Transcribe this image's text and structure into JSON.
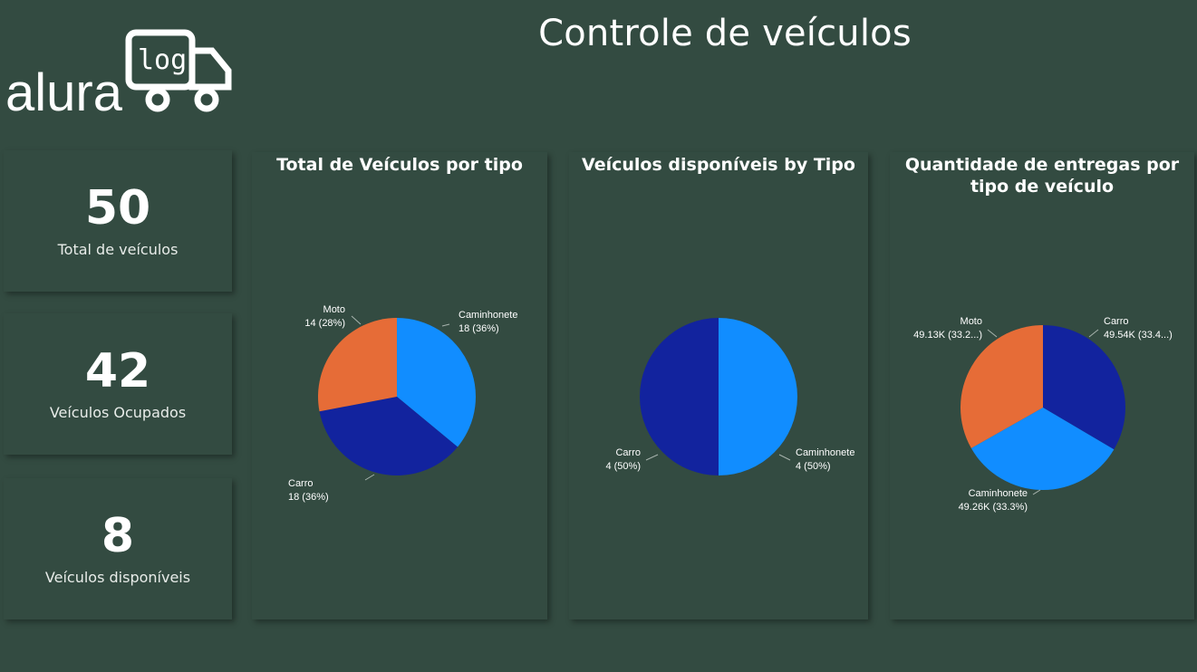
{
  "page": {
    "title": "Controle de veículos",
    "logo": {
      "text": "alura",
      "badge": "log"
    }
  },
  "kpis": [
    {
      "value": "50",
      "label": "Total de veículos"
    },
    {
      "value": "42",
      "label": "Veículos Ocupados"
    },
    {
      "value": "8",
      "label": "Veículos disponíveis"
    }
  ],
  "colors": {
    "background": "#334b41",
    "light_blue": "#118dff",
    "dark_blue": "#12239e",
    "orange": "#e66c37"
  },
  "chart_data": [
    {
      "type": "pie",
      "title": "Total de Veículos por tipo",
      "slices": [
        {
          "name": "Caminhonete",
          "value": 18,
          "label": "18 (36%)",
          "color": "#118dff"
        },
        {
          "name": "Carro",
          "value": 18,
          "label": "18 (36%)",
          "color": "#12239e"
        },
        {
          "name": "Moto",
          "value": 14,
          "label": "14 (28%)",
          "color": "#e66c37"
        }
      ]
    },
    {
      "type": "pie",
      "title": "Veículos disponíveis by Tipo",
      "slices": [
        {
          "name": "Caminhonete",
          "value": 4,
          "label": "4 (50%)",
          "color": "#118dff"
        },
        {
          "name": "Carro",
          "value": 4,
          "label": "4 (50%)",
          "color": "#12239e"
        }
      ]
    },
    {
      "type": "pie",
      "title": "Quantidade de entregas por tipo de veículo",
      "slices": [
        {
          "name": "Carro",
          "value": 49540,
          "label": "49.54K (33.4...)",
          "color": "#12239e"
        },
        {
          "name": "Caminhonete",
          "value": 49260,
          "label": "49.26K (33.3%)",
          "color": "#118dff"
        },
        {
          "name": "Moto",
          "value": 49130,
          "label": "49.13K (33.2...)",
          "color": "#e66c37"
        }
      ]
    }
  ]
}
